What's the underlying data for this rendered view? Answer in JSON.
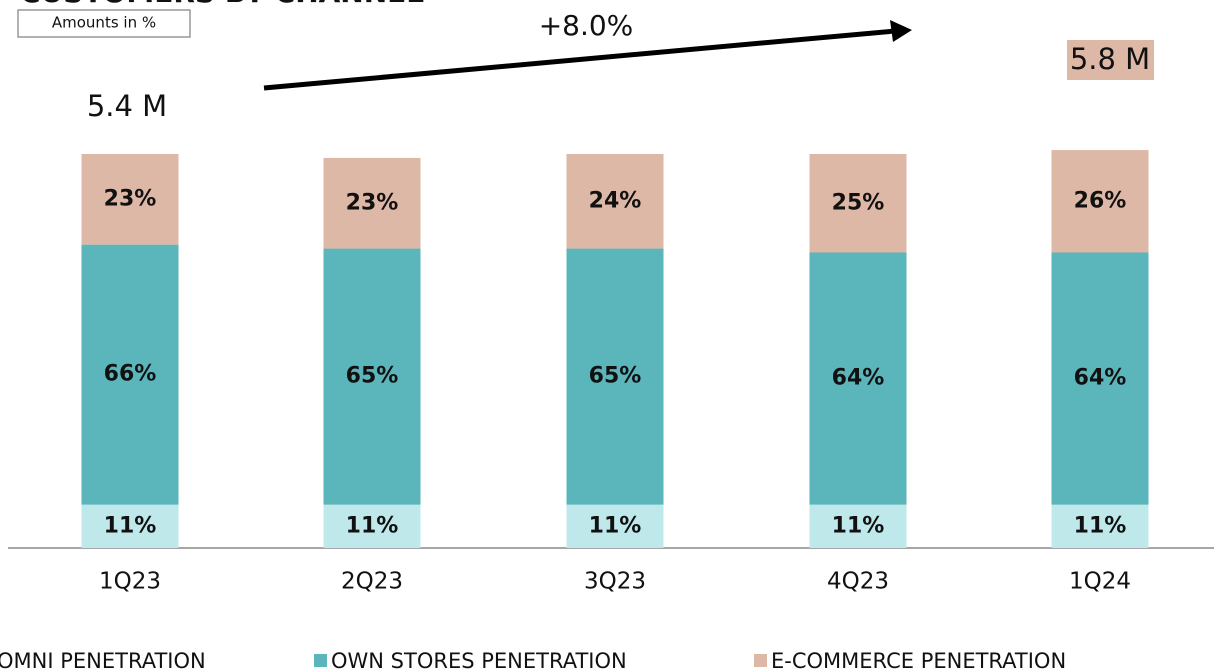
{
  "chart_data": {
    "type": "stacked_bar",
    "title": "CUSTOMERS BY CHANNEL",
    "subtitle": "Amounts in %",
    "annotations": [
      "+8.0%",
      "5.4 M",
      "5.8 M"
    ],
    "categories": [
      "1Q23",
      "2Q23",
      "3Q23",
      "4Q23",
      "1Q24"
    ],
    "ylim": [
      0,
      100
    ],
    "series": [
      {
        "name": "OMNI PENETRATION",
        "color": "#bfe8ea",
        "values": [
          11,
          11,
          11,
          11,
          11
        ],
        "value_labels": [
          "11%",
          "11%",
          "11%",
          "11%",
          "11%"
        ]
      },
      {
        "name": "OWN STORES PENETRATION",
        "color": "#5bb6bb",
        "values": [
          66,
          65,
          65,
          64,
          64
        ],
        "value_labels": [
          "66%",
          "65%",
          "65%",
          "64%",
          "64%"
        ]
      },
      {
        "name": "E-COMMERCE PENETRATION",
        "color": "#deb8a6",
        "values": [
          23,
          23,
          24,
          25,
          26
        ],
        "value_labels": [
          "23%",
          "23%",
          "24%",
          "25%",
          "26%"
        ]
      }
    ]
  }
}
